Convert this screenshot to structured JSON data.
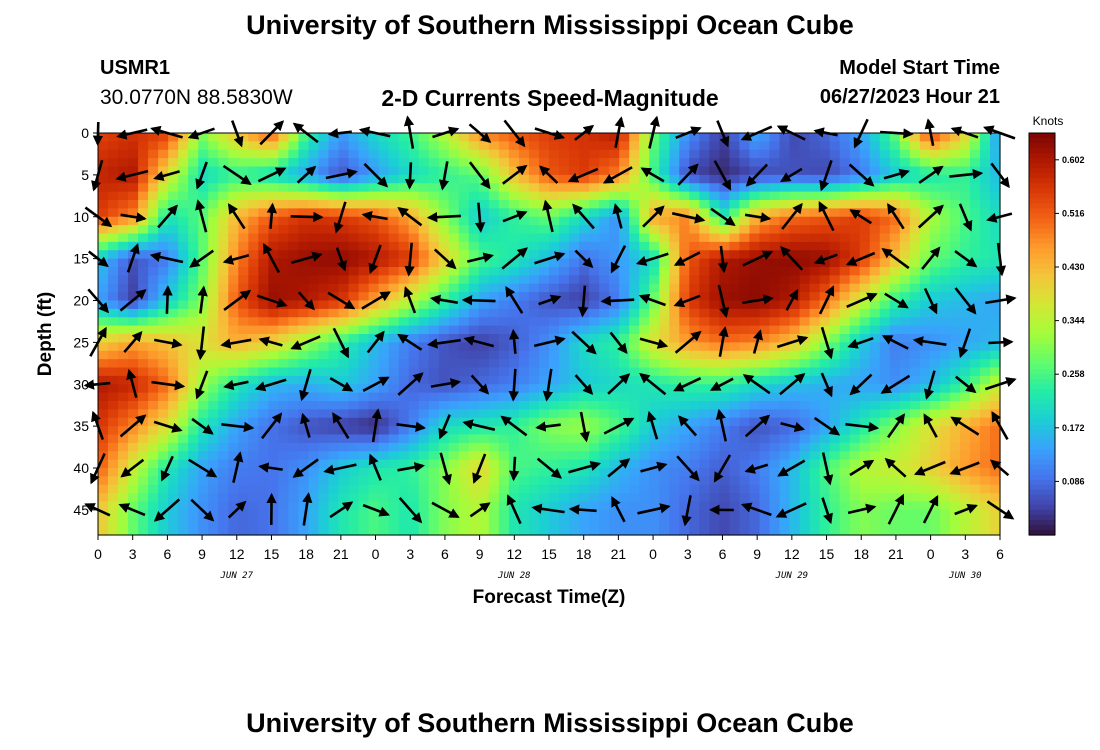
{
  "header": {
    "title": "University of Southern Mississippi Ocean Cube",
    "station_id": "USMR1",
    "coordinates": "30.0770N  88.5830W",
    "subtitle": "2-D Currents Speed-Magnitude",
    "model_start_label": "Model Start Time",
    "model_start_value": "06/27/2023 Hour 21"
  },
  "footer": {
    "title": "University of Southern Mississippi Ocean Cube"
  },
  "chart_data": {
    "type": "heatmap",
    "overlay": "current-vector-arrows",
    "xlabel": "Forecast Time(Z)",
    "ylabel": "Depth (ft)",
    "x_tick_labels": [
      "0",
      "3",
      "6",
      "9",
      "12",
      "15",
      "18",
      "21",
      "0",
      "3",
      "6",
      "9",
      "12",
      "15",
      "18",
      "21",
      "0",
      "3",
      "6",
      "9",
      "12",
      "15",
      "18",
      "21",
      "0",
      "3",
      "6"
    ],
    "x_range_hours": [
      0,
      78
    ],
    "date_labels": [
      {
        "label": "JUN 27",
        "hour": 12
      },
      {
        "label": "JUN 28",
        "hour": 36
      },
      {
        "label": "JUN 29",
        "hour": 60
      },
      {
        "label": "JUN 30",
        "hour": 75
      }
    ],
    "y_tick_labels": [
      "0",
      "5",
      "10",
      "15",
      "20",
      "25",
      "30",
      "35",
      "40",
      "45"
    ],
    "y_range_ft": [
      0,
      48
    ],
    "colorbar": {
      "unit": "Knots",
      "range": [
        0.0,
        0.645
      ],
      "tick_labels": [
        "0.602",
        "0.516",
        "0.430",
        "0.344",
        "0.258",
        "0.172",
        "0.086"
      ],
      "tick_values": [
        0.602,
        0.516,
        0.43,
        0.344,
        0.258,
        0.172,
        0.086
      ],
      "colormap": [
        "#30123b",
        "#4145ab",
        "#4675ed",
        "#39a2fc",
        "#1bcfd4",
        "#24eca6",
        "#61fc6c",
        "#a4fc3b",
        "#d1e834",
        "#f3c63a",
        "#fe9b2d",
        "#f36315",
        "#d93806",
        "#b11901",
        "#7a0403"
      ]
    },
    "speed_grid": {
      "time_hours": [
        0,
        3,
        6,
        9,
        12,
        15,
        18,
        21,
        24,
        27,
        30,
        33,
        36,
        39,
        42,
        45,
        48,
        51,
        54,
        57,
        60,
        63,
        66,
        69,
        72,
        75,
        78
      ],
      "depth_ft": [
        0,
        5,
        10,
        15,
        20,
        25,
        30,
        35,
        40,
        45
      ],
      "knots": [
        [
          0.54,
          0.56,
          0.55,
          0.3,
          0.42,
          0.52,
          0.25,
          0.13,
          0.2,
          0.25,
          0.34,
          0.48,
          0.52,
          0.55,
          0.56,
          0.6,
          0.28,
          0.12,
          0.04,
          0.15,
          0.05,
          0.08,
          0.14,
          0.28,
          0.55,
          0.4,
          0.12
        ],
        [
          0.58,
          0.6,
          0.38,
          0.2,
          0.24,
          0.2,
          0.14,
          0.06,
          0.13,
          0.2,
          0.24,
          0.27,
          0.42,
          0.52,
          0.55,
          0.48,
          0.25,
          0.05,
          0.02,
          0.05,
          0.06,
          0.05,
          0.1,
          0.18,
          0.22,
          0.24,
          0.16
        ],
        [
          0.55,
          0.48,
          0.21,
          0.27,
          0.43,
          0.52,
          0.56,
          0.55,
          0.52,
          0.45,
          0.3,
          0.18,
          0.24,
          0.28,
          0.2,
          0.12,
          0.45,
          0.48,
          0.22,
          0.44,
          0.5,
          0.52,
          0.55,
          0.5,
          0.33,
          0.26,
          0.2
        ],
        [
          0.18,
          0.06,
          0.1,
          0.27,
          0.48,
          0.6,
          0.62,
          0.63,
          0.6,
          0.55,
          0.4,
          0.26,
          0.22,
          0.16,
          0.09,
          0.13,
          0.2,
          0.52,
          0.6,
          0.62,
          0.63,
          0.62,
          0.55,
          0.42,
          0.28,
          0.24,
          0.22
        ],
        [
          0.14,
          0.04,
          0.18,
          0.3,
          0.52,
          0.62,
          0.6,
          0.56,
          0.45,
          0.34,
          0.24,
          0.14,
          0.1,
          0.06,
          0.04,
          0.1,
          0.28,
          0.55,
          0.62,
          0.63,
          0.6,
          0.5,
          0.36,
          0.24,
          0.18,
          0.16,
          0.14
        ],
        [
          0.4,
          0.45,
          0.42,
          0.38,
          0.44,
          0.4,
          0.32,
          0.24,
          0.16,
          0.1,
          0.06,
          0.04,
          0.07,
          0.12,
          0.2,
          0.24,
          0.38,
          0.46,
          0.5,
          0.48,
          0.42,
          0.3,
          0.18,
          0.1,
          0.12,
          0.14,
          0.16
        ],
        [
          0.6,
          0.58,
          0.5,
          0.32,
          0.22,
          0.16,
          0.15,
          0.18,
          0.14,
          0.08,
          0.06,
          0.08,
          0.1,
          0.14,
          0.18,
          0.2,
          0.22,
          0.24,
          0.24,
          0.2,
          0.17,
          0.15,
          0.14,
          0.12,
          0.16,
          0.24,
          0.36
        ],
        [
          0.56,
          0.48,
          0.38,
          0.22,
          0.14,
          0.09,
          0.06,
          0.04,
          0.02,
          0.1,
          0.2,
          0.22,
          0.24,
          0.3,
          0.32,
          0.26,
          0.18,
          0.14,
          0.1,
          0.06,
          0.08,
          0.14,
          0.22,
          0.3,
          0.38,
          0.44,
          0.5
        ],
        [
          0.52,
          0.36,
          0.22,
          0.14,
          0.1,
          0.09,
          0.12,
          0.18,
          0.22,
          0.24,
          0.3,
          0.4,
          0.26,
          0.24,
          0.22,
          0.16,
          0.12,
          0.1,
          0.07,
          0.1,
          0.16,
          0.26,
          0.34,
          0.36,
          0.4,
          0.46,
          0.5
        ],
        [
          0.42,
          0.28,
          0.18,
          0.12,
          0.08,
          0.09,
          0.14,
          0.22,
          0.26,
          0.22,
          0.3,
          0.34,
          0.22,
          0.18,
          0.14,
          0.12,
          0.12,
          0.08,
          0.05,
          0.08,
          0.16,
          0.24,
          0.3,
          0.28,
          0.28,
          0.34,
          0.4
        ]
      ]
    }
  }
}
